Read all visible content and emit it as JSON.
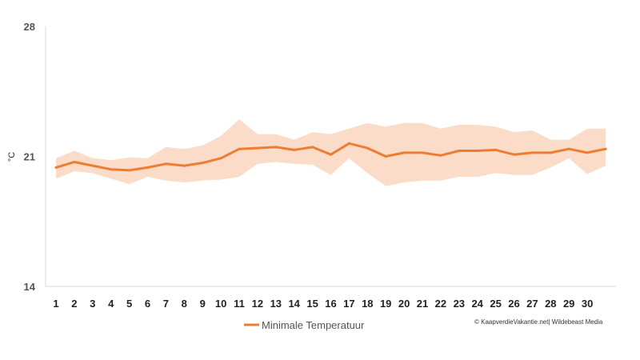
{
  "chart_data": {
    "type": "line",
    "unit_label": "°C",
    "ylim": [
      14,
      28
    ],
    "y_ticks": [
      14,
      21,
      28
    ],
    "x": [
      1,
      2,
      3,
      4,
      5,
      6,
      7,
      8,
      9,
      10,
      11,
      12,
      13,
      14,
      15,
      16,
      17,
      18,
      19,
      20,
      21,
      22,
      23,
      24,
      25,
      26,
      27,
      28,
      29,
      30,
      31
    ],
    "x_tick_labels": [
      "1",
      "2",
      "3",
      "4",
      "5",
      "6",
      "7",
      "8",
      "9",
      "10",
      "11",
      "12",
      "13",
      "14",
      "15",
      "16",
      "17",
      "18",
      "19",
      "20",
      "21",
      "22",
      "23",
      "24",
      "25",
      "26",
      "27",
      "28",
      "29",
      "30"
    ],
    "series": [
      {
        "name": "Minimale Temperatuur",
        "color": "#ED7D31",
        "values": [
          20.4,
          20.7,
          20.5,
          20.3,
          20.25,
          20.4,
          20.6,
          20.5,
          20.65,
          20.9,
          21.4,
          21.45,
          21.5,
          21.35,
          21.5,
          21.1,
          21.7,
          21.45,
          21.0,
          21.2,
          21.2,
          21.05,
          21.3,
          21.3,
          21.35,
          21.1,
          21.2,
          21.2,
          21.4,
          21.2,
          21.4
        ]
      }
    ],
    "range": {
      "color": "#FBDCC8",
      "upper": [
        20.9,
        21.3,
        20.9,
        20.8,
        20.95,
        20.9,
        21.5,
        21.4,
        21.6,
        22.1,
        23.0,
        22.2,
        22.2,
        21.9,
        22.3,
        22.2,
        22.5,
        22.8,
        22.6,
        22.8,
        22.8,
        22.5,
        22.7,
        22.7,
        22.6,
        22.3,
        22.4,
        21.9,
        21.9,
        22.5,
        22.5
      ],
      "lower": [
        19.8,
        20.2,
        20.1,
        19.8,
        19.5,
        19.9,
        19.7,
        19.6,
        19.7,
        19.75,
        19.9,
        20.6,
        20.7,
        20.6,
        20.55,
        20.0,
        20.9,
        20.1,
        19.4,
        19.6,
        19.7,
        19.7,
        19.9,
        19.9,
        20.1,
        20.0,
        20.0,
        20.4,
        20.9,
        20.05,
        20.5
      ]
    },
    "grid": false,
    "legend": "bottom"
  },
  "credit": "© KaapverdieVakantie.net| Wildebeast Media"
}
